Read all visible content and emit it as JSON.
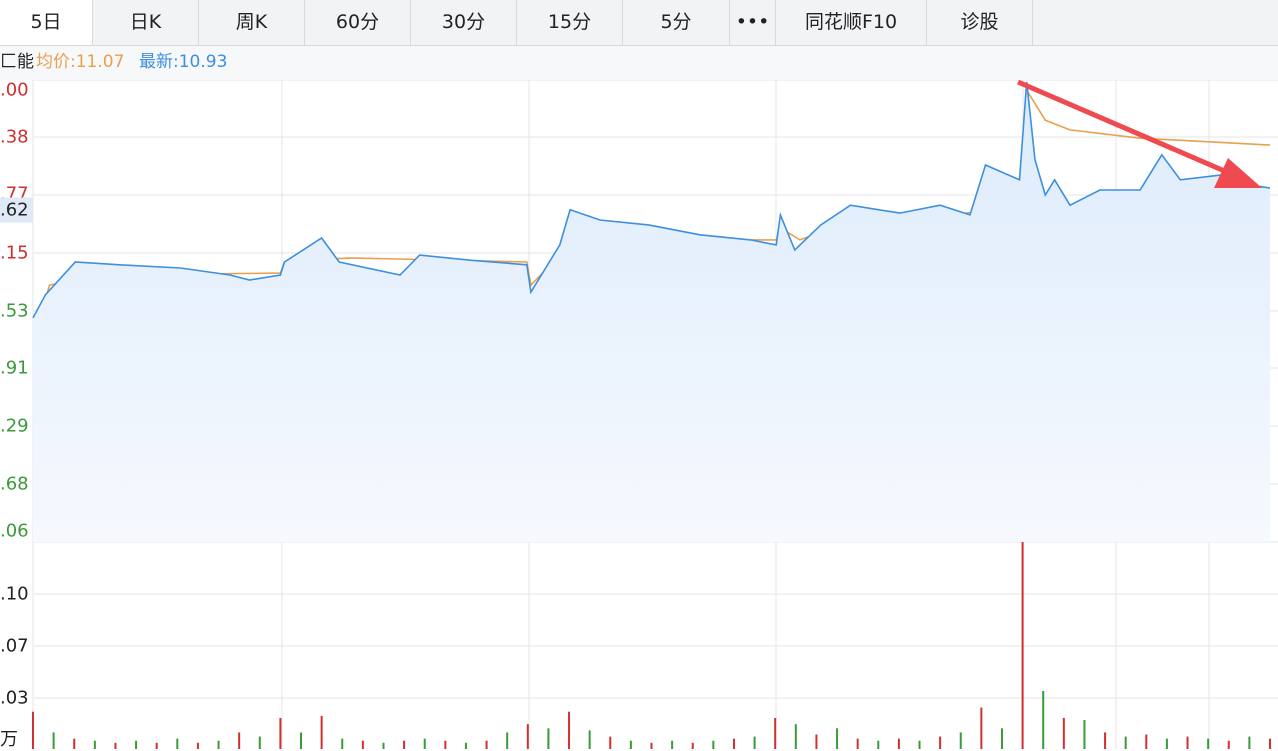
{
  "tabs": [
    "5日",
    "日K",
    "周K",
    "60分",
    "30分",
    "15分",
    "5分",
    "•••",
    "同花顺F10",
    "诊股"
  ],
  "legend": {
    "stock": "匚能",
    "avg": "均价:11.07",
    "latest": "最新:10.93"
  },
  "price_labels": [
    ".00",
    ".38",
    ".77",
    ".15",
    ".53",
    ".91",
    ".29",
    ".68",
    ".06"
  ],
  "current_label": ".62",
  "volume_labels": [
    ".10",
    ".07",
    ".03",
    "万"
  ],
  "chart_data": {
    "type": "line",
    "xlim": [
      0,
      1200
    ],
    "ylim": [
      0,
      100
    ],
    "vol_ylim": [
      0,
      100
    ],
    "series": [
      {
        "name": "price",
        "color": "#3d8fe0",
        "x": [
          0,
          12,
          41,
          84,
          143,
          191,
          210,
          240,
          244,
          280,
          297,
          356,
          375,
          424,
          479,
          483,
          511,
          521,
          550,
          598,
          647,
          696,
          721,
          725,
          739,
          764,
          793,
          841,
          880,
          909,
          924,
          957,
          964,
          972,
          982,
          991,
          1006,
          1035,
          1074,
          1095,
          1113,
          1151,
          1181,
          1200
        ],
        "values": [
          48.5,
          53.5,
          60.6,
          60,
          59.3,
          57.8,
          56.7,
          57.8,
          60.6,
          65.8,
          60.6,
          57.8,
          62.1,
          61,
          60,
          54.1,
          64.3,
          71.9,
          69.7,
          68.6,
          66.5,
          65.4,
          64.3,
          70.8,
          63.2,
          68.6,
          72.9,
          71.2,
          72.9,
          70.8,
          81.6,
          78.4,
          99.6,
          82.7,
          75.1,
          78.4,
          72.9,
          76.2,
          76.2,
          83.8,
          78.4,
          79.4,
          77.3,
          76.6
        ]
      },
      {
        "name": "avg",
        "color": "#e8a04e",
        "x": [
          7,
          16,
          65,
          240,
          244,
          307,
          479,
          483,
          521,
          550,
          721,
          725,
          744,
          783,
          957,
          964,
          982,
          1006,
          1074,
          1200
        ],
        "values": [
          48.5,
          55.6,
          57.8,
          58.2,
          60.6,
          61.5,
          60.6,
          55.6,
          64.3,
          65.4,
          65.4,
          68,
          65.4,
          68.6,
          72.3,
          97.8,
          91.3,
          89.2,
          87.4,
          85.9
        ]
      }
    ],
    "volume": {
      "colors": [
        "#d0302f",
        "#3a9a3a"
      ],
      "x": [
        0,
        20,
        40,
        60,
        80,
        100,
        120,
        140,
        160,
        180,
        200,
        220,
        240,
        260,
        280,
        300,
        320,
        340,
        360,
        380,
        400,
        420,
        440,
        460,
        480,
        500,
        520,
        540,
        560,
        580,
        600,
        620,
        640,
        660,
        680,
        700,
        720,
        740,
        760,
        780,
        800,
        820,
        840,
        860,
        880,
        900,
        920,
        940,
        960,
        980,
        1000,
        1020,
        1040,
        1060,
        1080,
        1100,
        1120,
        1140,
        1160,
        1180,
        1200
      ],
      "values": [
        18,
        8,
        5,
        4,
        3,
        4,
        3,
        5,
        3,
        4,
        8,
        6,
        15,
        8,
        16,
        5,
        4,
        3,
        4,
        5,
        4,
        3,
        4,
        8,
        12,
        10,
        18,
        9,
        6,
        4,
        3,
        4,
        3,
        4,
        5,
        6,
        15,
        12,
        7,
        10,
        5,
        4,
        5,
        4,
        6,
        8,
        20,
        10,
        100,
        28,
        15,
        14,
        8,
        6,
        7,
        5,
        6,
        5,
        4,
        6,
        5
      ]
    }
  }
}
